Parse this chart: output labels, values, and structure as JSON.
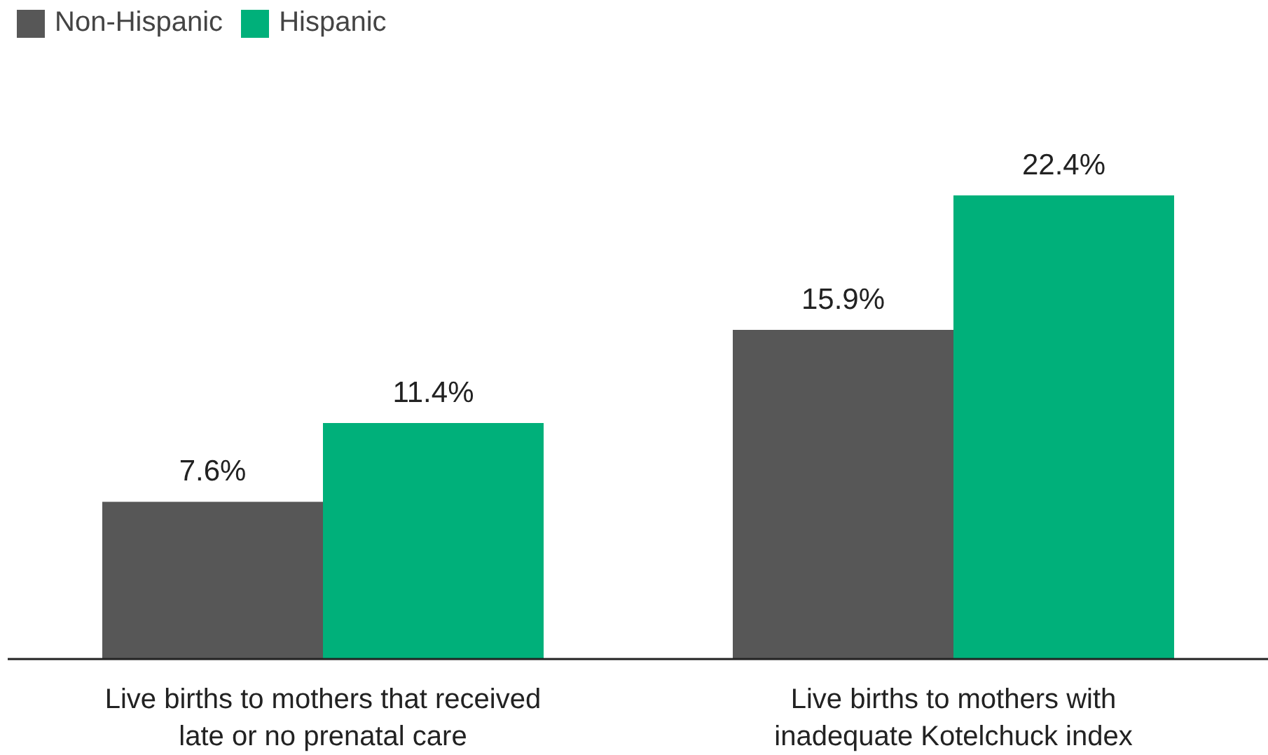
{
  "chart_data": {
    "type": "bar",
    "categories": [
      "Live births to mothers that received late or no prenatal care",
      "Live births to mothers with inadequate Kotelchuck index"
    ],
    "series": [
      {
        "name": "Non-Hispanic",
        "color": "#575757",
        "values": [
          7.6,
          15.9
        ],
        "value_labels": [
          "7.6%",
          "15.9%"
        ]
      },
      {
        "name": "Hispanic",
        "color": "#00b07a",
        "values": [
          11.4,
          22.4
        ],
        "value_labels": [
          "11.4%",
          "22.4%"
        ]
      }
    ],
    "legend": "top left"
  }
}
